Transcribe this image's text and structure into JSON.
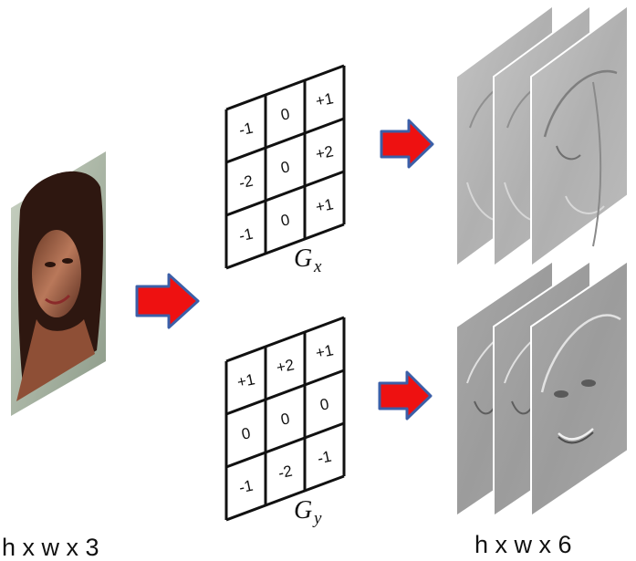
{
  "input": {
    "label": "h x w x 3"
  },
  "kernels": [
    {
      "name": "G",
      "subscript": "x",
      "rows": [
        [
          "-1",
          "0",
          "+1"
        ],
        [
          "-2",
          "0",
          "+2"
        ],
        [
          "-1",
          "0",
          "+1"
        ]
      ]
    },
    {
      "name": "G",
      "subscript": "y",
      "rows": [
        [
          "+1",
          "+2",
          "+1"
        ],
        [
          "0",
          "0",
          "0"
        ],
        [
          "-1",
          "-2",
          "-1"
        ]
      ]
    }
  ],
  "output": {
    "label": "h x w x 6"
  },
  "colors": {
    "arrow_fill": "#ee1111",
    "arrow_stroke": "#3b5fa8",
    "grid": "#111111",
    "gradient_gray": "#b4b4b4"
  }
}
